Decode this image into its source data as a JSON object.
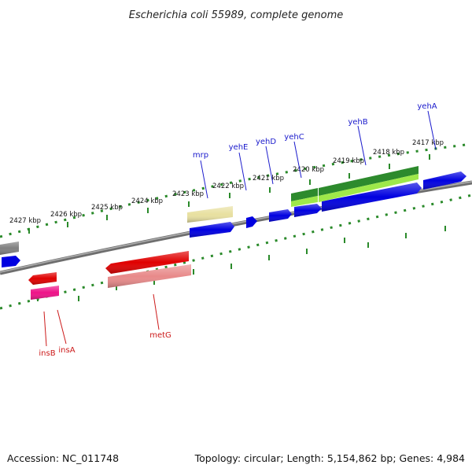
{
  "title": "Escherichia coli 55989, complete genome",
  "footer": {
    "accession": "Accession: NC_011748",
    "topology": "Topology: circular; Length: 5,154,862 bp; Genes: 4,984"
  },
  "colors": {
    "ruler": "#2a8a2a",
    "backbone": "#808080",
    "plus_label": "#1a1acc",
    "minus_label": "#cc1a1a"
  },
  "kbp_labels": [
    "2427 kbp",
    "2426 kbp",
    "2425 kbp",
    "2424 kbp",
    "2423 kbp",
    "2422 kbp",
    "2421 kbp",
    "2420 kbp",
    "2419 kbp",
    "2418 kbp",
    "2417 kbp"
  ],
  "gene_labels_plus": [
    "mrp",
    "yehE",
    "yehD",
    "yehC",
    "yehB",
    "yehA"
  ],
  "gene_labels_minus": [
    "insB",
    "insA",
    "metG"
  ],
  "features": [
    {
      "kind": "gene",
      "strand": "+",
      "color": "#e8e0a0"
    },
    {
      "kind": "gene",
      "strand": "+",
      "color": "#0000e0"
    },
    {
      "kind": "gene",
      "strand": "+",
      "color": "#0000e0"
    },
    {
      "kind": "gene",
      "strand": "+",
      "color": "#0000e0"
    },
    {
      "kind": "gene",
      "strand": "+",
      "color": "#0000e0"
    },
    {
      "kind": "gene",
      "strand": "+",
      "color": "#0000e0"
    },
    {
      "kind": "gene",
      "strand": "+",
      "color": "#0000e0"
    },
    {
      "kind": "gene",
      "strand": "+",
      "color": "#2d8a2d"
    },
    {
      "kind": "gene",
      "strand": "+",
      "color": "#9ee84a"
    },
    {
      "kind": "gene",
      "strand": "+",
      "color": "#808080"
    },
    {
      "kind": "gene",
      "strand": "+",
      "color": "#0000e0"
    },
    {
      "kind": "gene",
      "strand": "-",
      "color": "#e00000"
    },
    {
      "kind": "gene",
      "strand": "-",
      "color": "#ee1188"
    },
    {
      "kind": "gene",
      "strand": "-",
      "color": "#e00000"
    },
    {
      "kind": "gene",
      "strand": "-",
      "color": "#e88a8a"
    }
  ]
}
